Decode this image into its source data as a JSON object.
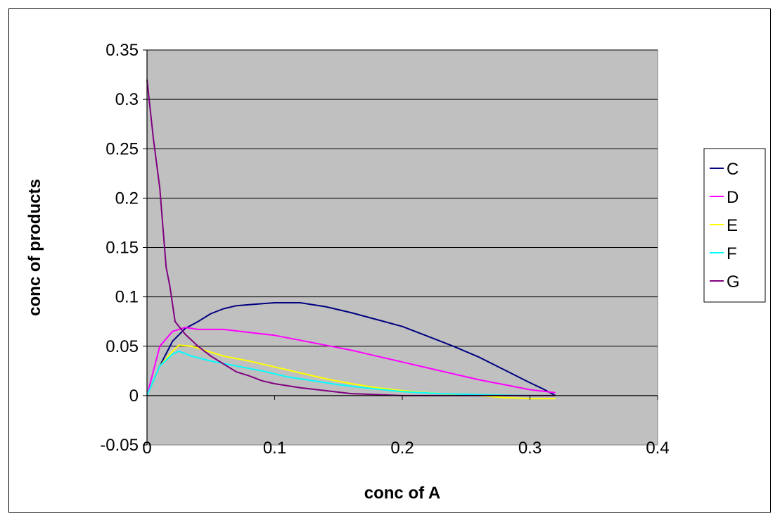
{
  "chart_data": {
    "type": "line",
    "title": "",
    "xlabel": "conc of A",
    "ylabel": "conc of products",
    "xlim": [
      0,
      0.4
    ],
    "ylim": [
      -0.05,
      0.35
    ],
    "x_ticks": [
      0,
      0.1,
      0.2,
      0.3,
      0.4
    ],
    "x_tick_labels": [
      "0",
      "0.1",
      "0.2",
      "0.3",
      "0.4"
    ],
    "y_ticks": [
      -0.05,
      0,
      0.05,
      0.1,
      0.15,
      0.2,
      0.25,
      0.3,
      0.35
    ],
    "y_tick_labels": [
      "-0.05",
      "0",
      "0.05",
      "0.1",
      "0.15",
      "0.2",
      "0.25",
      "0.3",
      "0.35"
    ],
    "grid": "horizontal",
    "plot_background": "#c0c0c0",
    "legend_position": "right",
    "series": [
      {
        "name": "C",
        "color": "#000080",
        "points": [
          [
            0,
            0
          ],
          [
            0.01,
            0.03
          ],
          [
            0.02,
            0.055
          ],
          [
            0.03,
            0.068
          ],
          [
            0.04,
            0.075
          ],
          [
            0.05,
            0.083
          ],
          [
            0.06,
            0.088
          ],
          [
            0.07,
            0.091
          ],
          [
            0.08,
            0.092
          ],
          [
            0.1,
            0.094
          ],
          [
            0.12,
            0.094
          ],
          [
            0.14,
            0.09
          ],
          [
            0.16,
            0.084
          ],
          [
            0.18,
            0.077
          ],
          [
            0.2,
            0.07
          ],
          [
            0.22,
            0.06
          ],
          [
            0.24,
            0.05
          ],
          [
            0.26,
            0.039
          ],
          [
            0.28,
            0.026
          ],
          [
            0.3,
            0.013
          ],
          [
            0.31,
            0.007
          ],
          [
            0.32,
            0
          ]
        ]
      },
      {
        "name": "D",
        "color": "#ff00ff",
        "points": [
          [
            0,
            0
          ],
          [
            0.01,
            0.05
          ],
          [
            0.02,
            0.065
          ],
          [
            0.03,
            0.069
          ],
          [
            0.04,
            0.067
          ],
          [
            0.06,
            0.067
          ],
          [
            0.08,
            0.064
          ],
          [
            0.1,
            0.061
          ],
          [
            0.12,
            0.056
          ],
          [
            0.14,
            0.051
          ],
          [
            0.16,
            0.046
          ],
          [
            0.18,
            0.04
          ],
          [
            0.2,
            0.034
          ],
          [
            0.22,
            0.028
          ],
          [
            0.24,
            0.022
          ],
          [
            0.26,
            0.016
          ],
          [
            0.28,
            0.011
          ],
          [
            0.3,
            0.006
          ],
          [
            0.32,
            0.003
          ]
        ]
      },
      {
        "name": "E",
        "color": "#ffff00",
        "points": [
          [
            0,
            0
          ],
          [
            0.01,
            0.03
          ],
          [
            0.02,
            0.045
          ],
          [
            0.025,
            0.051
          ],
          [
            0.035,
            0.05
          ],
          [
            0.05,
            0.044
          ],
          [
            0.06,
            0.04
          ],
          [
            0.08,
            0.035
          ],
          [
            0.1,
            0.029
          ],
          [
            0.12,
            0.023
          ],
          [
            0.14,
            0.017
          ],
          [
            0.16,
            0.012
          ],
          [
            0.18,
            0.008
          ],
          [
            0.2,
            0.005
          ],
          [
            0.22,
            0.003
          ],
          [
            0.24,
            0.001
          ],
          [
            0.26,
            0
          ],
          [
            0.28,
            -0.002
          ],
          [
            0.3,
            -0.003
          ],
          [
            0.32,
            -0.003
          ]
        ]
      },
      {
        "name": "F",
        "color": "#00ffff",
        "points": [
          [
            0,
            0
          ],
          [
            0.01,
            0.03
          ],
          [
            0.02,
            0.042
          ],
          [
            0.025,
            0.045
          ],
          [
            0.035,
            0.04
          ],
          [
            0.05,
            0.035
          ],
          [
            0.07,
            0.03
          ],
          [
            0.09,
            0.025
          ],
          [
            0.11,
            0.019
          ],
          [
            0.13,
            0.015
          ],
          [
            0.15,
            0.011
          ],
          [
            0.17,
            0.008
          ],
          [
            0.2,
            0.004
          ],
          [
            0.23,
            0.002
          ],
          [
            0.26,
            0.001
          ],
          [
            0.3,
            0
          ],
          [
            0.32,
            0
          ]
        ]
      },
      {
        "name": "G",
        "color": "#800080",
        "points": [
          [
            0,
            0.32
          ],
          [
            0.005,
            0.26
          ],
          [
            0.01,
            0.21
          ],
          [
            0.015,
            0.13
          ],
          [
            0.018,
            0.11
          ],
          [
            0.022,
            0.075
          ],
          [
            0.03,
            0.062
          ],
          [
            0.04,
            0.05
          ],
          [
            0.05,
            0.04
          ],
          [
            0.06,
            0.032
          ],
          [
            0.07,
            0.024
          ],
          [
            0.08,
            0.02
          ],
          [
            0.09,
            0.015
          ],
          [
            0.1,
            0.012
          ],
          [
            0.12,
            0.008
          ],
          [
            0.14,
            0.005
          ],
          [
            0.16,
            0.002
          ],
          [
            0.18,
            0.001
          ],
          [
            0.2,
            0
          ],
          [
            0.25,
            0
          ],
          [
            0.32,
            0
          ]
        ]
      }
    ]
  }
}
